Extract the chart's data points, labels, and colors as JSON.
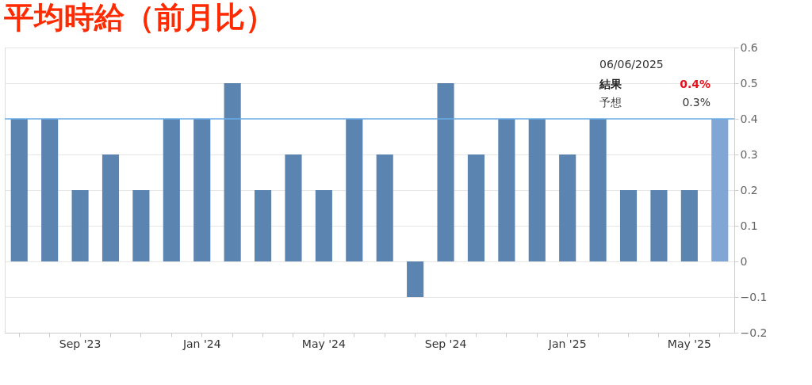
{
  "chart_data": {
    "type": "bar",
    "title": "平均時給（前月比）",
    "categories": [
      null,
      null,
      "Sep '23",
      null,
      null,
      null,
      "Jan '24",
      null,
      null,
      null,
      "May '24",
      null,
      null,
      null,
      "Sep '24",
      null,
      null,
      null,
      "Jan '25",
      null,
      null,
      null,
      "May '25",
      null
    ],
    "values": [
      0.4,
      0.4,
      0.2,
      0.3,
      0.2,
      0.4,
      0.4,
      0.5,
      0.2,
      0.3,
      0.2,
      0.4,
      0.3,
      -0.1,
      0.5,
      0.3,
      0.4,
      0.4,
      0.3,
      0.4,
      0.2,
      0.2,
      0.2,
      0.4
    ],
    "colors": [
      "#5b84b1",
      "#5b84b1",
      "#5b84b1",
      "#5b84b1",
      "#5b84b1",
      "#5b84b1",
      "#5b84b1",
      "#5b84b1",
      "#5b84b1",
      "#5b84b1",
      "#5b84b1",
      "#5b84b1",
      "#5b84b1",
      "#5b84b1",
      "#5b84b1",
      "#5b84b1",
      "#5b84b1",
      "#5b84b1",
      "#5b84b1",
      "#5b84b1",
      "#5b84b1",
      "#5b84b1",
      "#5b84b1",
      "#7fa6d4"
    ],
    "ylim": [
      -0.2,
      0.6
    ],
    "yticks": [
      -0.2,
      -0.1,
      0,
      0.1,
      0.2,
      0.3,
      0.4,
      0.5,
      0.6
    ],
    "grid": "y",
    "ref_lines": [
      {
        "axis": "y",
        "value": 0.4,
        "color": "#6aaee8"
      }
    ],
    "annotations": [
      "06/06/2025",
      "結果",
      "0.4%",
      "予想",
      "0.3%"
    ]
  }
}
